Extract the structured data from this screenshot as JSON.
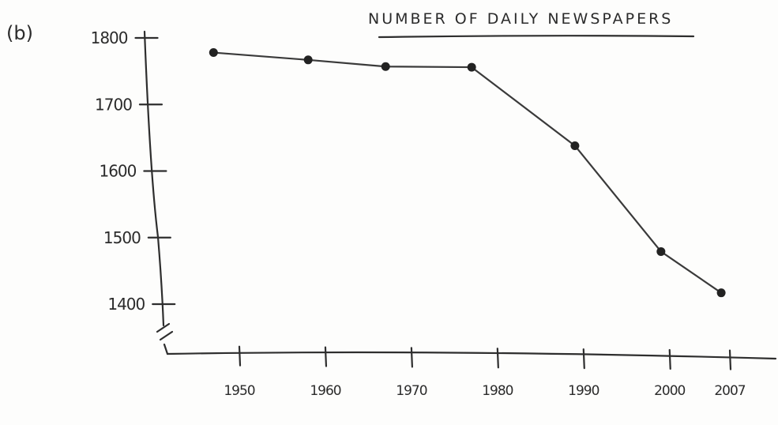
{
  "panel_label": "(b)",
  "chart_data": {
    "type": "line",
    "title": "NUMBER OF DAILY NEWSPAPERS",
    "xlabel": "",
    "ylabel": "",
    "x": [
      1947,
      1958,
      1967,
      1977,
      1989,
      1999,
      2006
    ],
    "values": [
      1778,
      1767,
      1757,
      1756,
      1638,
      1479,
      1417
    ],
    "x_ticks": [
      1950,
      1960,
      1970,
      1980,
      1990,
      2000,
      2007
    ],
    "x_tick_labels": [
      "1950",
      "1960",
      "1970",
      "1980",
      "1990",
      "2000",
      "2007"
    ],
    "y_ticks": [
      1400,
      1500,
      1600,
      1700,
      1800
    ],
    "y_tick_labels": [
      "1400",
      "1500",
      "1600",
      "1700",
      "1800"
    ],
    "ylim": [
      1400,
      1800
    ],
    "y_axis_break": true,
    "grid": false,
    "legend": "none"
  }
}
